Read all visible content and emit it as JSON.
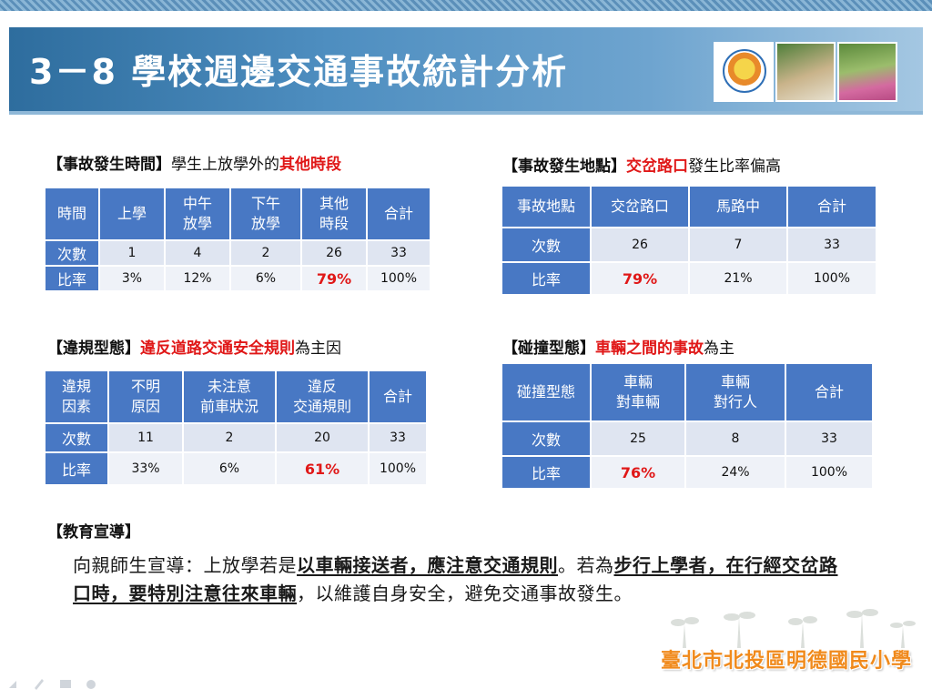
{
  "slide": {
    "title": "3－8 學校週邊交通事故統計分析",
    "school_name": "臺北市北投區明德國民小學"
  },
  "time_section": {
    "heading_bracket": "【事故發生時間】",
    "heading_plain": "學生上放學外的",
    "heading_highlight": "其他時段",
    "header": [
      "時間",
      "上學",
      "中午\n放學",
      "下午\n放學",
      "其他\n時段",
      "合計"
    ],
    "rows": [
      {
        "label": "次數",
        "values": [
          "1",
          "4",
          "2",
          "26",
          "33"
        ]
      },
      {
        "label": "比率",
        "values": [
          "3%",
          "12%",
          "6%",
          "79%",
          "100%"
        ]
      }
    ]
  },
  "location_section": {
    "heading_bracket": "【事故發生地點】",
    "heading_highlight": "交岔路口",
    "heading_plain": "發生比率偏高",
    "header": [
      "事故地點",
      "交岔路口",
      "馬路中",
      "合計"
    ],
    "rows": [
      {
        "label": "次數",
        "values": [
          "26",
          "7",
          "33"
        ]
      },
      {
        "label": "比率",
        "values": [
          "79%",
          "21%",
          "100%"
        ]
      }
    ]
  },
  "violation_section": {
    "heading_bracket": "【違規型態】",
    "heading_highlight": "違反道路交通安全規則",
    "heading_plain": "為主因",
    "header": [
      "違規\n因素",
      "不明\n原因",
      "未注意\n前車狀況",
      "違反\n交通規則",
      "合計"
    ],
    "rows": [
      {
        "label": "次數",
        "values": [
          "11",
          "2",
          "20",
          "33"
        ]
      },
      {
        "label": "比率",
        "values": [
          "33%",
          "6%",
          "61%",
          "100%"
        ]
      }
    ]
  },
  "collision_section": {
    "heading_bracket": "【碰撞型態】",
    "heading_highlight": "車輛之間的事故",
    "heading_plain": "為主",
    "header": [
      "碰撞型態",
      "車輛\n對車輛",
      "車輛\n對行人",
      "合計"
    ],
    "rows": [
      {
        "label": "次數",
        "values": [
          "25",
          "8",
          "33"
        ]
      },
      {
        "label": "比率",
        "values": [
          "76%",
          "24%",
          "100%"
        ]
      }
    ]
  },
  "education": {
    "heading": "【教育宣導】",
    "part1": "向親師生宣導：上放學若是",
    "part2_underlined": "以車輛接送者，應注意交通規則",
    "part3": "。若為",
    "part4_underlined": "步行上學者，在行經交岔路口時，要特別注意往來車輛",
    "part5": "，以維護自身安全，避免交通事故發生。"
  }
}
